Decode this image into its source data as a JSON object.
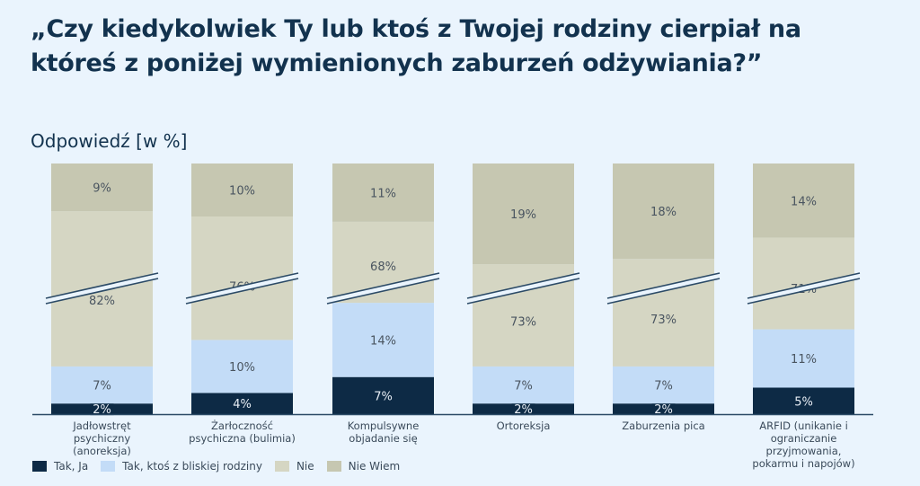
{
  "title": "„Czy kiedykolwiek Ty lub ktoś z Twojej rodziny cierpiał na któreś z poniżej wymienionych zaburzeń odżywiania?”",
  "subtitle": "Odpowiedź [w %]",
  "chart_data": {
    "type": "bar",
    "stacked": true,
    "broken_axis": true,
    "title": "„Czy kiedykolwiek Ty lub ktoś z Twojej rodziny cierpiał na któreś z poniżej wymienionych zaburzeń odżywiania?”",
    "ylabel": "Odpowiedź [w %]",
    "categories": [
      "Jadłowstręt psychiczny (anoreksja)",
      "Żarłoczność psychiczna (bulimia)",
      "Kompulsywne objadanie się",
      "Ortoreksja",
      "Zaburzenia pica",
      "ARFID (unikanie i ograniczanie przyjmowania, pokarmu i napojów)"
    ],
    "series": [
      {
        "name": "Tak, Ja",
        "color": "#0d2a45",
        "values": [
          2,
          4,
          7,
          2,
          2,
          5
        ]
      },
      {
        "name": "Tak, ktoś z bliskiej rodziny",
        "color": "#c3dcf7",
        "values": [
          7,
          10,
          14,
          7,
          7,
          11
        ]
      },
      {
        "name": "Nie",
        "color": "#d5d6c3",
        "values": [
          82,
          76,
          68,
          73,
          73,
          71
        ]
      },
      {
        "name": "Nie Wiem",
        "color": "#c6c7b1",
        "values": [
          9,
          10,
          11,
          19,
          18,
          14
        ]
      }
    ],
    "legend": "bottom-left",
    "grid": false
  }
}
